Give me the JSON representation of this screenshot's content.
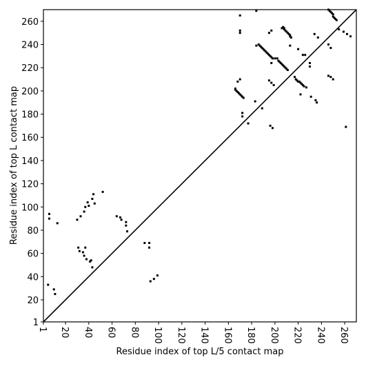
{
  "chart_data": {
    "type": "scatter",
    "xlabel": "Residue index of top L/5 contact map",
    "ylabel": "Residue index of top L contact map",
    "color": "#000000",
    "xlim": [
      1,
      270
    ],
    "ylim": [
      1,
      270
    ],
    "xticks": [
      1,
      20,
      40,
      60,
      80,
      100,
      120,
      140,
      160,
      180,
      200,
      220,
      240,
      260
    ],
    "yticks": [
      1,
      20,
      40,
      60,
      80,
      100,
      120,
      140,
      160,
      180,
      200,
      220,
      240,
      260
    ],
    "x": [
      5,
      6,
      6,
      10,
      11,
      13,
      30,
      31,
      32,
      33,
      35,
      36,
      36,
      37,
      37,
      38,
      39,
      40,
      41,
      42,
      43,
      43,
      44,
      45,
      52,
      64,
      67,
      68,
      72,
      72,
      73,
      88,
      92,
      92,
      93,
      96,
      99,
      170,
      170,
      170,
      184,
      195,
      197,
      184,
      186,
      187,
      188,
      189,
      190,
      191,
      192,
      193,
      194,
      195,
      196,
      197,
      198,
      200,
      202,
      203,
      204,
      205,
      206,
      207,
      208,
      209,
      210,
      211,
      197,
      206,
      207,
      208,
      208,
      209,
      210,
      211,
      212,
      213,
      213,
      214,
      246,
      247,
      248,
      249,
      250,
      250,
      251,
      252,
      253,
      213,
      220,
      224,
      226,
      234,
      237,
      246,
      248,
      255,
      259,
      262,
      265,
      166,
      166,
      167,
      168,
      169,
      170,
      171,
      172,
      173,
      168,
      170,
      172,
      172,
      177,
      183,
      189,
      195,
      197,
      199,
      196,
      198,
      217,
      218,
      219,
      220,
      221,
      222,
      223,
      224,
      225,
      227,
      222,
      230,
      230,
      231,
      235,
      236,
      246,
      248,
      250,
      261
    ],
    "values": [
      33,
      94,
      90,
      29,
      25,
      86,
      89,
      65,
      62,
      92,
      61,
      58,
      96,
      100,
      65,
      55,
      104,
      101,
      53,
      54,
      48,
      107,
      111,
      103,
      113,
      92,
      91,
      89,
      87,
      84,
      79,
      69,
      65,
      69,
      36,
      38,
      41,
      265,
      252,
      250,
      269,
      250,
      252,
      239,
      240,
      239,
      238,
      237,
      236,
      235,
      234,
      233,
      232,
      231,
      230,
      229,
      228,
      228,
      228,
      226,
      225,
      224,
      223,
      222,
      221,
      220,
      219,
      218,
      224,
      254,
      255,
      254,
      253,
      252,
      251,
      250,
      249,
      248,
      247,
      246,
      270,
      269,
      268,
      267,
      266,
      264,
      263,
      262,
      261,
      239,
      236,
      231,
      231,
      249,
      246,
      240,
      237,
      253,
      251,
      249,
      247,
      202,
      201,
      200,
      199,
      198,
      197,
      196,
      195,
      194,
      208,
      210,
      181,
      178,
      172,
      191,
      185,
      209,
      207,
      205,
      170,
      168,
      212,
      210,
      209,
      208,
      208,
      207,
      206,
      205,
      204,
      203,
      197,
      224,
      221,
      195,
      192,
      190,
      213,
      212,
      210,
      169
    ]
  }
}
